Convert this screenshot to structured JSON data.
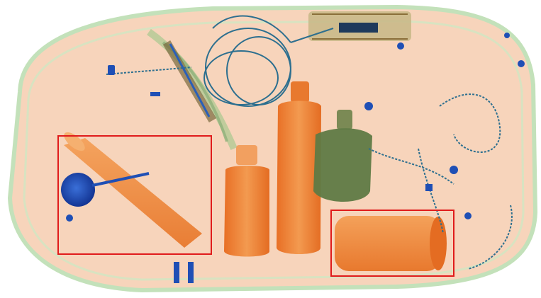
{
  "colors": {
    "background": "#ffffff",
    "bag_fill": "#f6cdb0",
    "bag_edge": "#b9dcae",
    "organic_orange": "#f08a3c",
    "organic_orange_dark": "#e2732a",
    "metal_blue": "#1f4fb5",
    "metal_blue_dark": "#12308a",
    "mixed_green": "#6f8a4a",
    "wire_teal": "#2d6f8f",
    "detection_box": "#e01b1b"
  },
  "detections": [
    {
      "label": "",
      "color": "#e01b1b"
    },
    {
      "label": "",
      "color": "#e01b1b"
    }
  ],
  "objects": [
    "baggage-outline",
    "bottle-large",
    "bottle-small",
    "green-flask",
    "cylinder-left",
    "cylinder-right",
    "cable-bundle",
    "circuit-board",
    "blue-round-object",
    "coil-wires"
  ]
}
